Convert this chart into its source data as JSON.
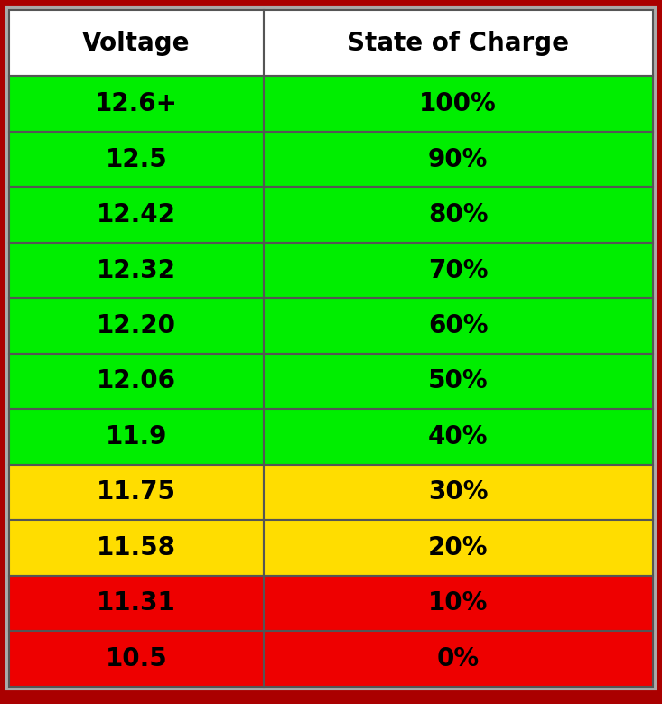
{
  "headers": [
    "Voltage",
    "State of Charge"
  ],
  "rows": [
    [
      "12.6+",
      "100%"
    ],
    [
      "12.5",
      "90%"
    ],
    [
      "12.42",
      "80%"
    ],
    [
      "12.32",
      "70%"
    ],
    [
      "12.20",
      "60%"
    ],
    [
      "12.06",
      "50%"
    ],
    [
      "11.9",
      "40%"
    ],
    [
      "11.75",
      "30%"
    ],
    [
      "11.58",
      "20%"
    ],
    [
      "11.31",
      "10%"
    ],
    [
      "10.5",
      "0%"
    ]
  ],
  "row_colors": [
    [
      "#00ee00",
      "#00ee00"
    ],
    [
      "#00ee00",
      "#00ee00"
    ],
    [
      "#00ee00",
      "#00ee00"
    ],
    [
      "#00ee00",
      "#00ee00"
    ],
    [
      "#00ee00",
      "#00ee00"
    ],
    [
      "#00ee00",
      "#00ee00"
    ],
    [
      "#00ee00",
      "#00ee00"
    ],
    [
      "#ffdd00",
      "#ffdd00"
    ],
    [
      "#ffdd00",
      "#ffdd00"
    ],
    [
      "#ee0000",
      "#ee0000"
    ],
    [
      "#ee0000",
      "#ee0000"
    ]
  ],
  "header_color": "#ffffff",
  "outer_border_color": "#aa0000",
  "cell_border_color": "#555555",
  "text_color": "#000000",
  "header_fontsize": 20,
  "cell_fontsize": 20,
  "figsize": [
    7.33,
    7.8
  ],
  "dpi": 100,
  "col_split": 0.395
}
